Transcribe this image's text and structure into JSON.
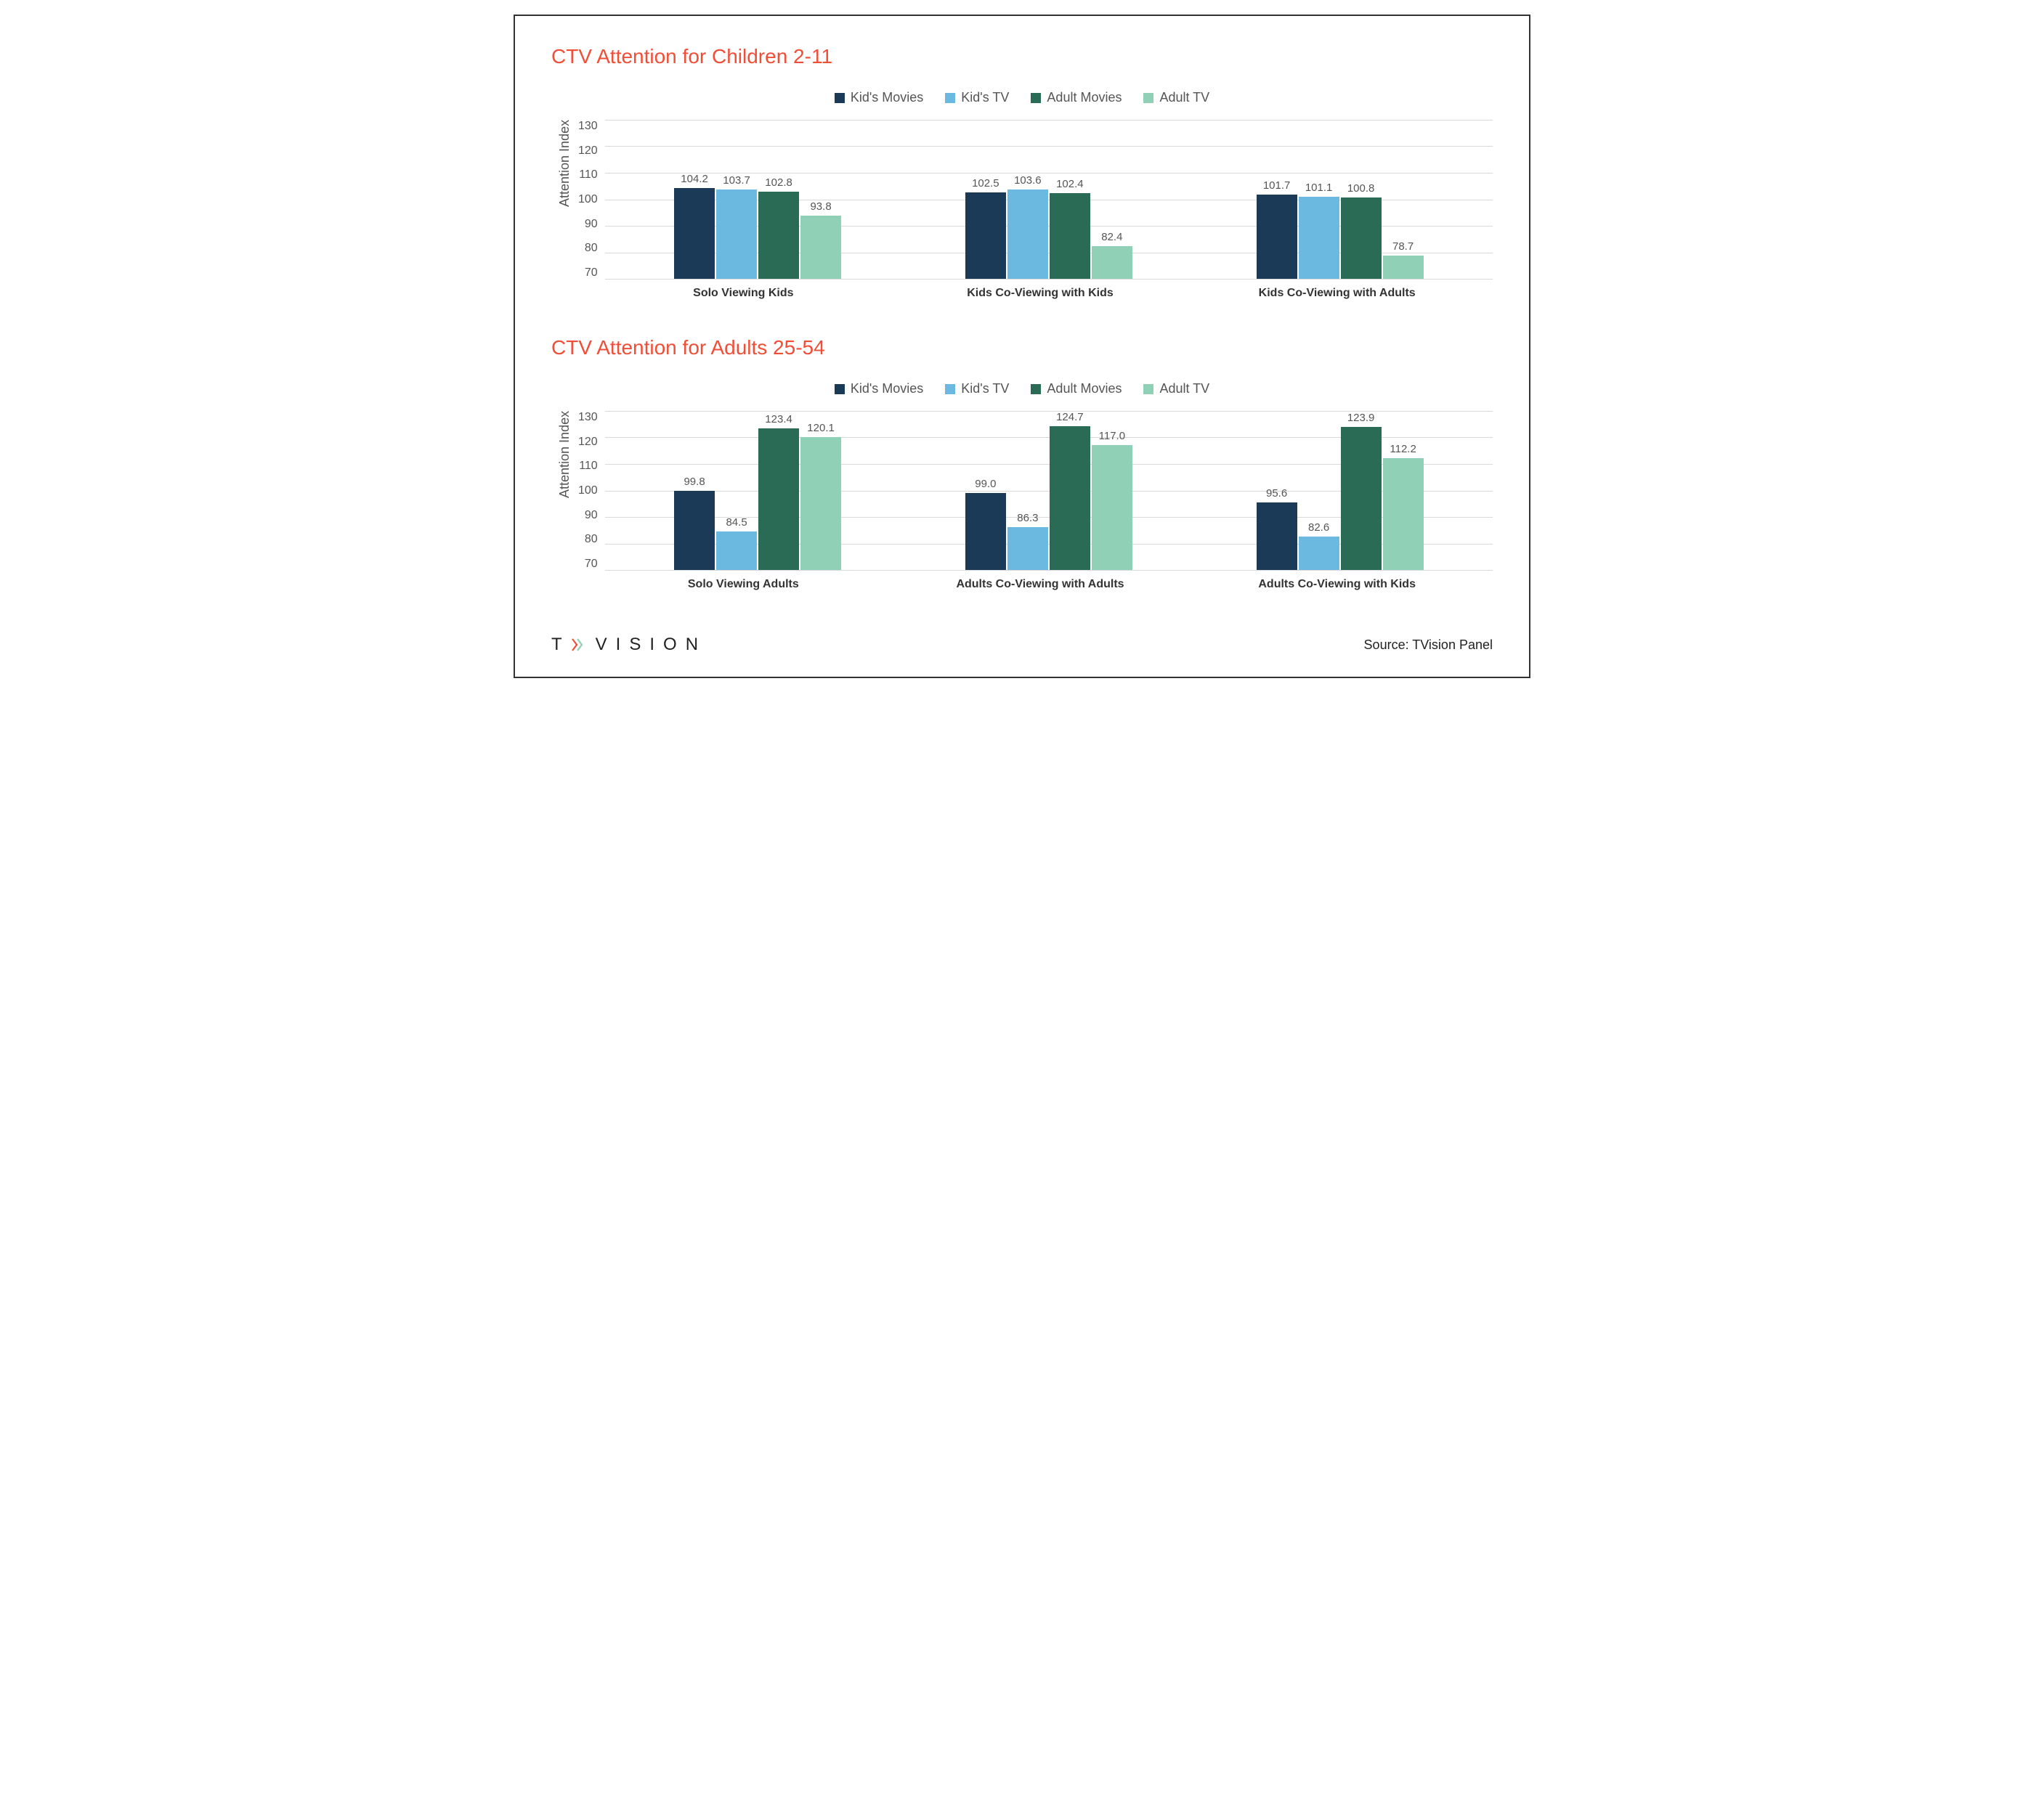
{
  "background_color": "#ffffff",
  "border_color": "#333333",
  "title_color": "#f04e37",
  "title_fontsize": 28,
  "axis_text_color": "#595959",
  "grid_color": "#d9d9d9",
  "series": [
    {
      "name": "Kid's Movies",
      "color": "#1b3a57"
    },
    {
      "name": "Kid's TV",
      "color": "#6bb8e0"
    },
    {
      "name": "Adult Movies",
      "color": "#2a6b55"
    },
    {
      "name": "Adult TV",
      "color": "#8fd0b6"
    }
  ],
  "charts": [
    {
      "title": "CTV Attention for Children 2-11",
      "ylabel": "Attention Index",
      "ylim": [
        70,
        130
      ],
      "ytick_step": 10,
      "categories": [
        "Solo Viewing Kids",
        "Kids Co-Viewing with Kids",
        "Kids Co-Viewing with Adults"
      ],
      "data": [
        [
          104.2,
          103.7,
          102.8,
          93.8
        ],
        [
          102.5,
          103.6,
          102.4,
          82.4
        ],
        [
          101.7,
          101.1,
          100.8,
          78.7
        ]
      ]
    },
    {
      "title": "CTV Attention for Adults 25-54",
      "ylabel": "Attention Index",
      "ylim": [
        70,
        130
      ],
      "ytick_step": 10,
      "categories": [
        "Solo Viewing Adults",
        "Adults Co-Viewing with Adults",
        "Adults Co-Viewing with Kids"
      ],
      "data": [
        [
          99.8,
          84.5,
          123.4,
          120.1
        ],
        [
          99.0,
          86.3,
          124.7,
          117.0
        ],
        [
          95.6,
          82.6,
          123.9,
          112.2
        ]
      ]
    }
  ],
  "footer": {
    "logo_text": "TVISION",
    "source_text": "Source: TVision Panel"
  }
}
